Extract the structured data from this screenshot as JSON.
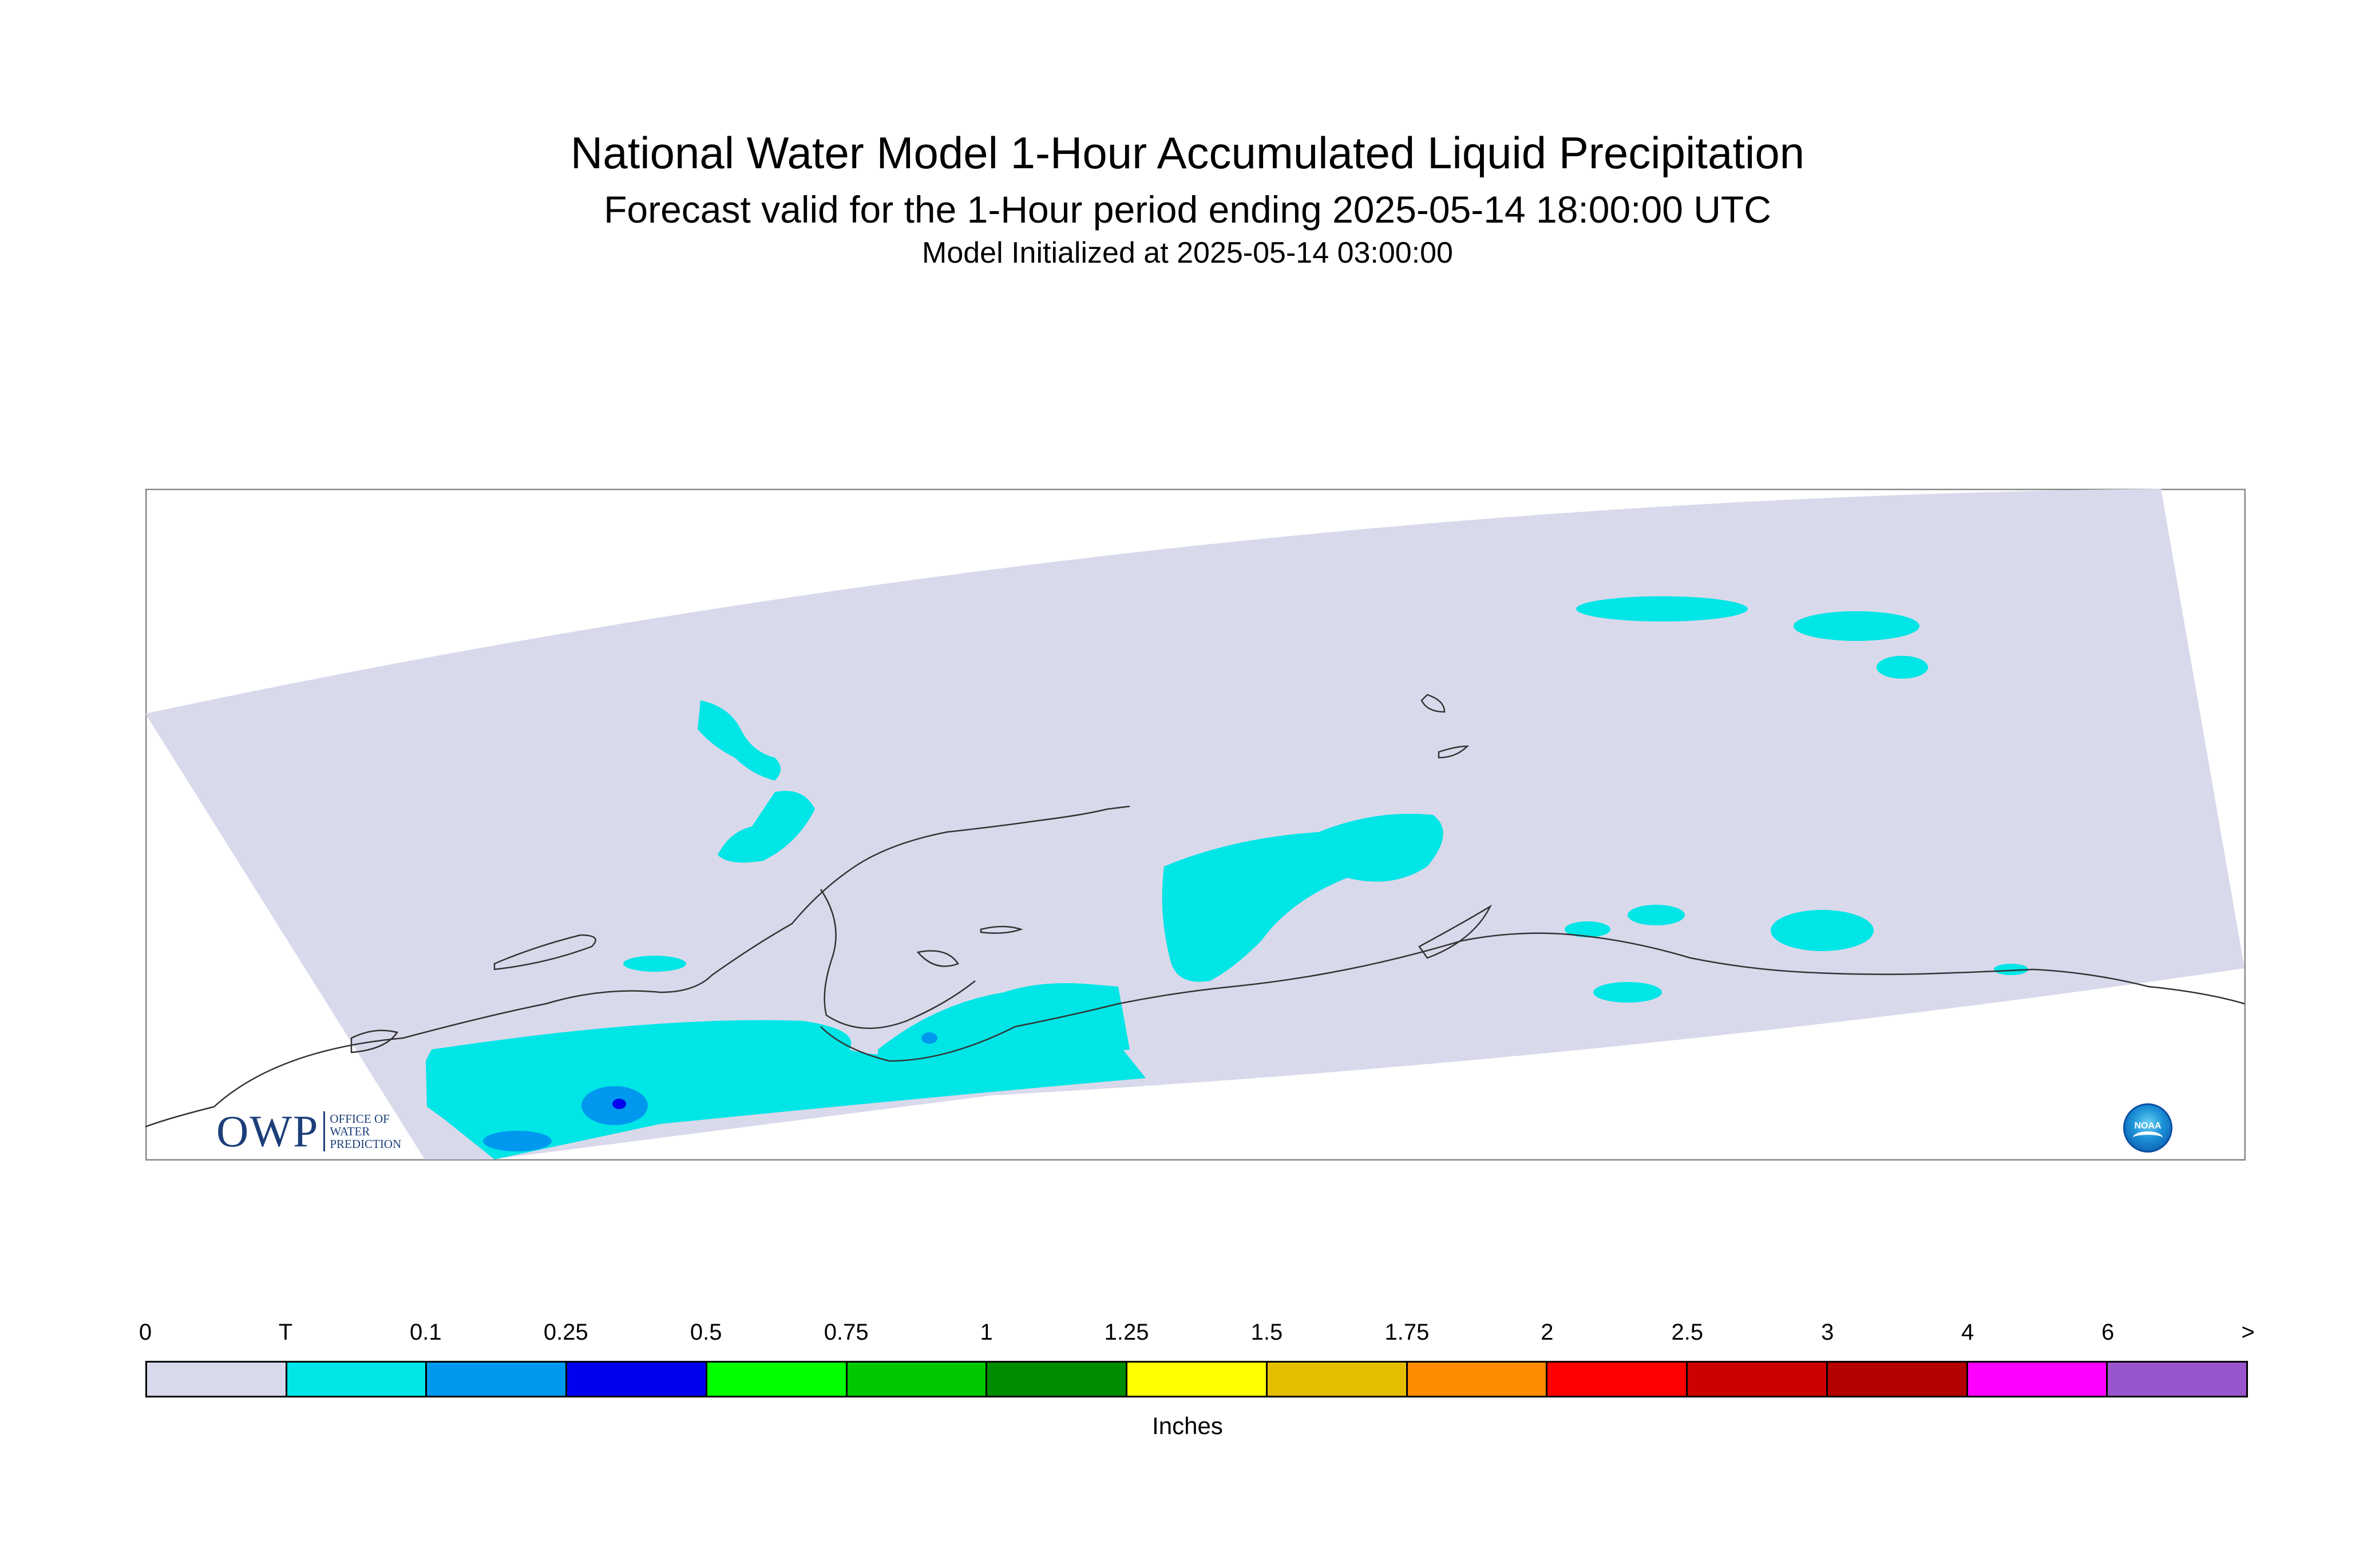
{
  "title": {
    "line1": "National Water Model 1-Hour Accumulated Liquid Precipitation",
    "line2": "Forecast valid for the 1-Hour period ending 2025-05-14 18:00:00 UTC",
    "line3": "Model Initialized at 2025-05-14 03:00:00"
  },
  "logos": {
    "owp_letters": "OWP",
    "owp_line1": "OFFICE OF",
    "owp_line2": "WATER",
    "owp_line3": "PREDICTION",
    "noaa": "NOAA"
  },
  "legend": {
    "units": "Inches",
    "ticks": [
      "0",
      "T",
      "0.1",
      "0.25",
      "0.5",
      "0.75",
      "1",
      "1.25",
      "1.5",
      "1.75",
      "2",
      "2.5",
      "3",
      "4",
      "6",
      ">"
    ],
    "colors": [
      "#d9d9ec",
      "#00e5e5",
      "#0098ee",
      "#0000ee",
      "#00ff00",
      "#00c800",
      "#008c00",
      "#ffff00",
      "#e5bd00",
      "#ff8c00",
      "#ff0000",
      "#cc0000",
      "#b30000",
      "#ff00ff",
      "#9955cc"
    ]
  },
  "map_colors": {
    "domain": "#d9d9ec",
    "trace": "#00e5e5",
    "light": "#0098ee",
    "moderate": "#0000ee",
    "coastline": "#333333",
    "frame": "#888888"
  }
}
